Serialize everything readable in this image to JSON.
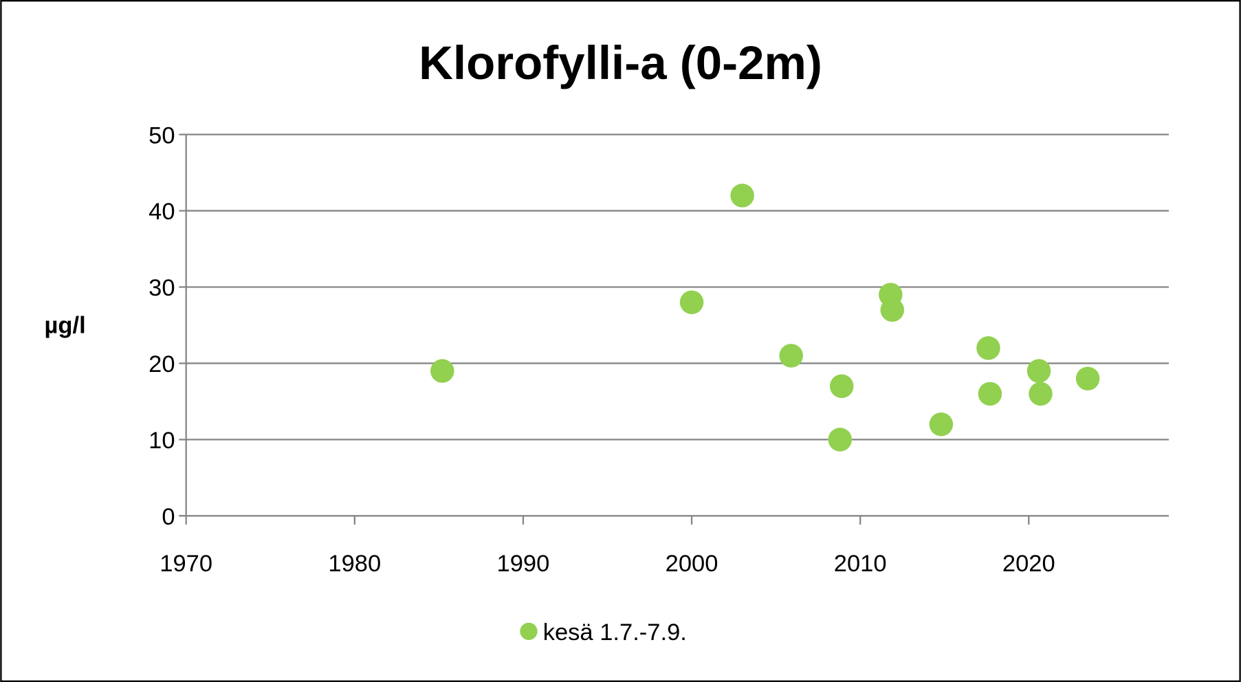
{
  "chart_data": {
    "type": "scatter",
    "title": "Klorofylli-a (0-2m)",
    "xlabel": "",
    "ylabel": "µg/l",
    "xlim": [
      1970,
      2028
    ],
    "ylim": [
      0,
      50
    ],
    "xticks": [
      1970,
      1980,
      1990,
      2000,
      2010,
      2020
    ],
    "yticks": [
      0,
      10,
      20,
      30,
      40,
      50
    ],
    "grid": "horizontal",
    "legend_position": "bottom",
    "series": [
      {
        "name": "kesä 1.7.-7.9.",
        "color": "#92d050",
        "x": [
          1985.2,
          2000.0,
          2003.0,
          2005.9,
          2008.9,
          2008.8,
          2011.8,
          2011.9,
          2014.8,
          2017.6,
          2017.7,
          2020.6,
          2020.7,
          2023.5
        ],
        "y": [
          19,
          28,
          42,
          21,
          17,
          10,
          29,
          27,
          12,
          22,
          16,
          19,
          16,
          18
        ]
      }
    ]
  }
}
